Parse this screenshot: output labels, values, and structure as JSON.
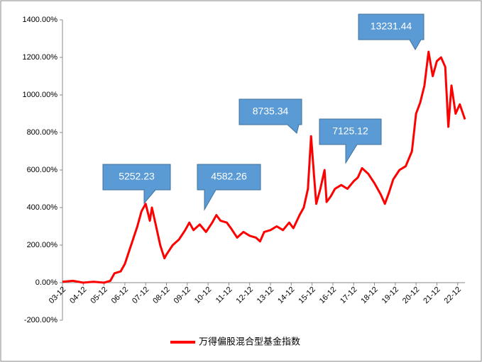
{
  "chart_data": {
    "type": "line",
    "xticks": [
      {
        "value": 0,
        "label": "03-12"
      },
      {
        "value": 1,
        "label": "04-12"
      },
      {
        "value": 2,
        "label": "05-12"
      },
      {
        "value": 3,
        "label": "06-12"
      },
      {
        "value": 4,
        "label": "07-12"
      },
      {
        "value": 5,
        "label": "08-12"
      },
      {
        "value": 6,
        "label": "09-12"
      },
      {
        "value": 7,
        "label": "10-12"
      },
      {
        "value": 8,
        "label": "11-12"
      },
      {
        "value": 9,
        "label": "12-12"
      },
      {
        "value": 10,
        "label": "13-12"
      },
      {
        "value": 11,
        "label": "14-12"
      },
      {
        "value": 12,
        "label": "15-12"
      },
      {
        "value": 13,
        "label": "16-12"
      },
      {
        "value": 14,
        "label": "17-12"
      },
      {
        "value": 15,
        "label": "18-12"
      },
      {
        "value": 16,
        "label": "19-12"
      },
      {
        "value": 17,
        "label": "20-12"
      },
      {
        "value": 18,
        "label": "21-12"
      },
      {
        "value": 19,
        "label": "22-12"
      }
    ],
    "xlim": [
      0,
      19.35
    ],
    "ylim": [
      -200,
      1400
    ],
    "yticks": [
      {
        "value": -200,
        "label": "-200.00%"
      },
      {
        "value": 0,
        "label": "0.00%"
      },
      {
        "value": 200,
        "label": "200.00%"
      },
      {
        "value": 400,
        "label": "400.00%"
      },
      {
        "value": 600,
        "label": "600.00%"
      },
      {
        "value": 800,
        "label": "800.00%"
      },
      {
        "value": 1000,
        "label": "1000.00%"
      },
      {
        "value": 1200,
        "label": "1200.00%"
      },
      {
        "value": 1400,
        "label": "1400.00%"
      }
    ],
    "annotations": [
      "5252.23",
      "4582.26",
      "8735.34",
      "7125.12",
      "13231.44"
    ],
    "series": [
      {
        "name": "万得偏股混合型基金指数",
        "color": "#ff0000",
        "x": [
          0,
          0.5,
          1.0,
          1.5,
          2.0,
          2.3,
          2.5,
          2.8,
          3.0,
          3.3,
          3.6,
          3.8,
          4.0,
          4.2,
          4.3,
          4.5,
          4.7,
          4.9,
          5.0,
          5.3,
          5.6,
          5.9,
          6.1,
          6.3,
          6.6,
          6.9,
          7.2,
          7.4,
          7.6,
          7.9,
          8.1,
          8.4,
          8.7,
          9.0,
          9.3,
          9.5,
          9.7,
          10.0,
          10.3,
          10.6,
          10.9,
          11.1,
          11.4,
          11.6,
          11.8,
          11.95,
          12.1,
          12.2,
          12.4,
          12.6,
          12.7,
          12.9,
          13.1,
          13.4,
          13.7,
          14.0,
          14.2,
          14.4,
          14.7,
          15.0,
          15.3,
          15.5,
          15.7,
          15.9,
          16.2,
          16.5,
          16.8,
          17.0,
          17.2,
          17.4,
          17.6,
          17.8,
          18.0,
          18.2,
          18.4,
          18.55,
          18.7,
          18.9,
          19.1,
          19.35
        ],
        "values": [
          5,
          10,
          0,
          5,
          0,
          10,
          50,
          60,
          100,
          200,
          300,
          380,
          420,
          330,
          400,
          300,
          200,
          130,
          150,
          200,
          230,
          280,
          320,
          280,
          310,
          270,
          320,
          360,
          330,
          320,
          290,
          240,
          270,
          250,
          240,
          220,
          270,
          280,
          300,
          280,
          320,
          290,
          360,
          400,
          500,
          780,
          560,
          420,
          500,
          600,
          430,
          460,
          500,
          520,
          500,
          540,
          560,
          610,
          580,
          530,
          470,
          420,
          480,
          550,
          600,
          620,
          700,
          900,
          960,
          1050,
          1230,
          1100,
          1180,
          1200,
          1150,
          830,
          1050,
          900,
          950,
          870
        ]
      }
    ]
  }
}
